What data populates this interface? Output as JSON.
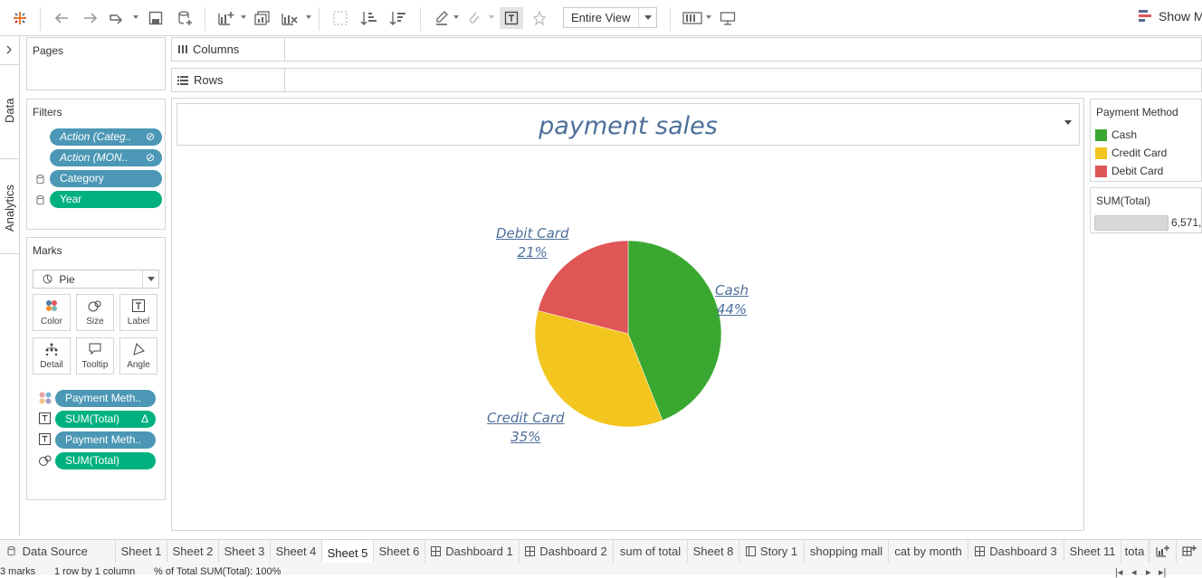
{
  "toolbar": {
    "fit": "Entire View",
    "show_me": "Show Me"
  },
  "side_tabs": {
    "data": "Data",
    "analytics": "Analytics"
  },
  "pages": {
    "title": "Pages"
  },
  "filters": {
    "title": "Filters",
    "items": [
      {
        "label": "Action (Categ..",
        "style": "blue-italic"
      },
      {
        "label": "Action (MON..",
        "style": "blue-italic"
      },
      {
        "label": "Category",
        "style": "blue"
      },
      {
        "label": "Year",
        "style": "green"
      }
    ]
  },
  "marks": {
    "title": "Marks",
    "type": "Pie",
    "buttons": [
      "Color",
      "Size",
      "Label",
      "Detail",
      "Tooltip",
      "Angle"
    ],
    "fields": [
      {
        "label": "Payment Meth..",
        "icon": "color-dots-icon",
        "style": "blue"
      },
      {
        "label": "SUM(Total)",
        "icon": "text-icon",
        "style": "green",
        "extra": "Δ"
      },
      {
        "label": "Payment Meth..",
        "icon": "text-icon",
        "style": "blue"
      },
      {
        "label": "SUM(Total)",
        "icon": "angle-icon",
        "style": "green"
      }
    ]
  },
  "shelves": {
    "columns": "Columns",
    "rows": "Rows"
  },
  "view": {
    "title": "payment sales"
  },
  "chart_data": {
    "type": "pie",
    "title": "payment sales",
    "slices": [
      {
        "name": "Cash",
        "percent": 44,
        "label": "44%",
        "color": "#3aa830"
      },
      {
        "name": "Credit Card",
        "percent": 35,
        "label": "35%",
        "color": "#f2c61f"
      },
      {
        "name": "Debit Card",
        "percent": 21,
        "label": "21%",
        "color": "#e05657"
      }
    ]
  },
  "legend": {
    "title": "Payment Method",
    "items": [
      {
        "label": "Cash",
        "color": "#3aa830"
      },
      {
        "label": "Credit Card",
        "color": "#f2c61f"
      },
      {
        "label": "Debit Card",
        "color": "#e05657"
      }
    ]
  },
  "size_legend": {
    "title": "SUM(Total)",
    "value": "6,571,"
  },
  "tabs": {
    "data_source": "Data Source",
    "sheets": [
      "Sheet 1",
      "Sheet 2",
      "Sheet 3",
      "Sheet 4",
      "Sheet 5",
      "Sheet 6",
      "Dashboard 1",
      "Dashboard 2",
      "sum of total",
      "Sheet 8",
      "Story 1",
      "shopping mall",
      "cat by month",
      "Dashboard 3",
      "Sheet 11",
      "tota"
    ],
    "active": "Sheet 5"
  },
  "status": {
    "marks": "3 marks",
    "rows": "1 row by 1 column",
    "percent": "% of Total SUM(Total): 100%"
  }
}
